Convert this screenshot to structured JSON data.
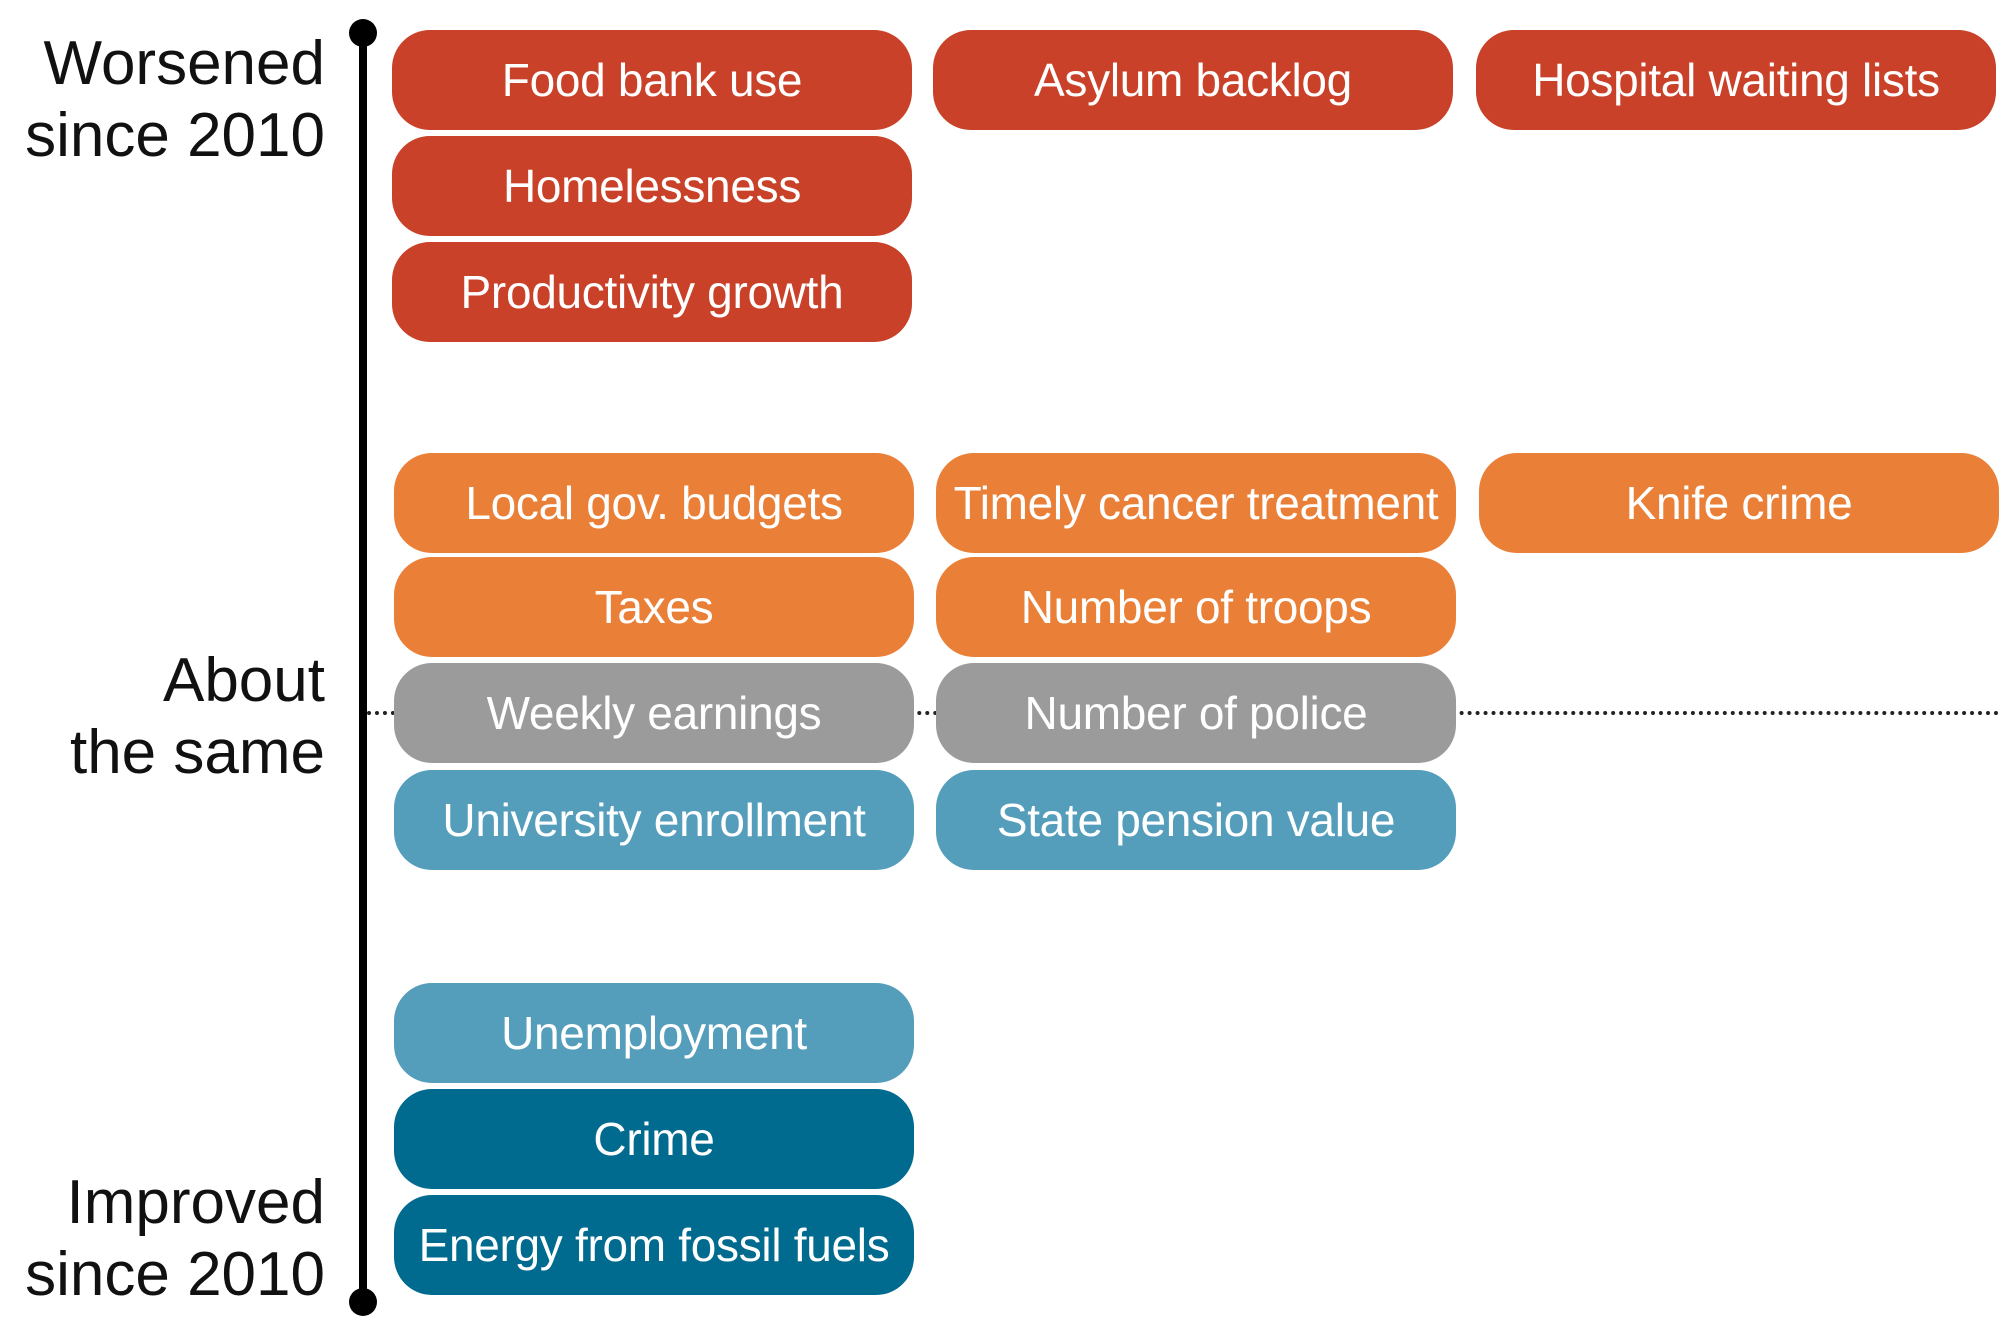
{
  "labels": {
    "worsened": [
      "Worsened",
      "since 2010"
    ],
    "same": [
      "About",
      "the same"
    ],
    "improved": [
      "Improved",
      "since 2010"
    ]
  },
  "colors": {
    "worsened": "#c94128",
    "somewhat_worsened": "#ea8038",
    "same": "#9b9b9b",
    "somewhat_improved": "#549ebc",
    "improved": "#016b8f"
  },
  "items": [
    {
      "label": "Food bank use",
      "status": "worsened"
    },
    {
      "label": "Asylum backlog",
      "status": "worsened"
    },
    {
      "label": "Hospital waiting lists",
      "status": "worsened"
    },
    {
      "label": "Homelessness",
      "status": "worsened"
    },
    {
      "label": "Productivity growth",
      "status": "worsened"
    },
    {
      "label": "Local gov. budgets",
      "status": "somewhat_worsened"
    },
    {
      "label": "Timely cancer treatment",
      "status": "somewhat_worsened"
    },
    {
      "label": "Knife crime",
      "status": "somewhat_worsened"
    },
    {
      "label": "Taxes",
      "status": "somewhat_worsened"
    },
    {
      "label": "Number of troops",
      "status": "somewhat_worsened"
    },
    {
      "label": "Weekly earnings",
      "status": "same"
    },
    {
      "label": "Number of police",
      "status": "same"
    },
    {
      "label": "University enrollment",
      "status": "somewhat_improved"
    },
    {
      "label": "State pension value",
      "status": "somewhat_improved"
    },
    {
      "label": "Unemployment",
      "status": "somewhat_improved"
    },
    {
      "label": "Crime",
      "status": "improved"
    },
    {
      "label": "Energy from fossil fuels",
      "status": "improved"
    }
  ]
}
